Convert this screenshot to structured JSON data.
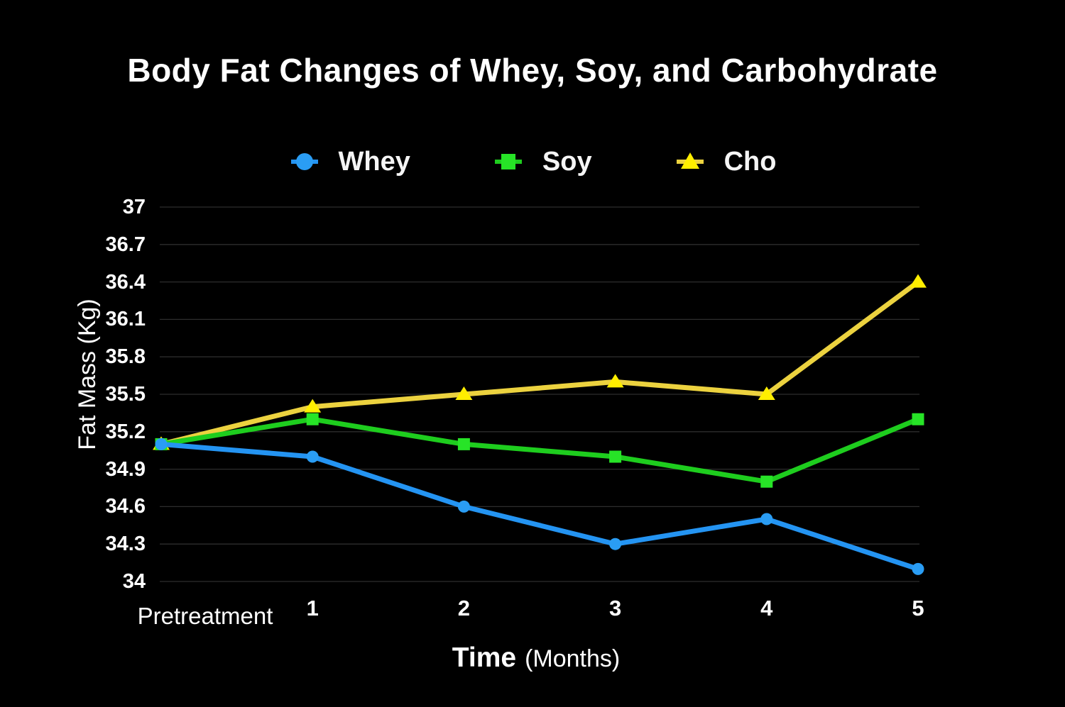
{
  "chart_data": {
    "type": "line",
    "title": "Body Fat Changes of Whey, Soy, and Carbohydrate",
    "xlabel": "Time",
    "xlabel_suffix": "(Months)",
    "ylabel": "Fat Mass (Kg)",
    "categories": [
      "Pretreatment",
      "1",
      "2",
      "3",
      "4",
      "5"
    ],
    "y_ticks": [
      34,
      34.3,
      34.6,
      34.9,
      35.2,
      35.5,
      35.8,
      36.1,
      36.4,
      36.7,
      37
    ],
    "ylim": [
      34,
      37
    ],
    "grid": true,
    "legend_position": "top",
    "series": [
      {
        "name": "Whey",
        "marker": "circle",
        "line_color": "#2494f2",
        "marker_color": "#2a9df4",
        "values": [
          35.1,
          35.0,
          34.6,
          34.3,
          34.5,
          34.1
        ]
      },
      {
        "name": "Soy",
        "marker": "square",
        "line_color": "#1ecd1e",
        "marker_color": "#27e427",
        "values": [
          35.1,
          35.3,
          35.1,
          35.0,
          34.8,
          35.3
        ]
      },
      {
        "name": "Cho",
        "marker": "triangle",
        "line_color": "#ecd23f",
        "marker_color": "#ffee00",
        "values": [
          35.1,
          35.4,
          35.5,
          35.6,
          35.5,
          36.4
        ]
      }
    ],
    "colors": {
      "background": "#000000",
      "text": "#ffffff",
      "gridline": "#2d2d2d"
    }
  }
}
